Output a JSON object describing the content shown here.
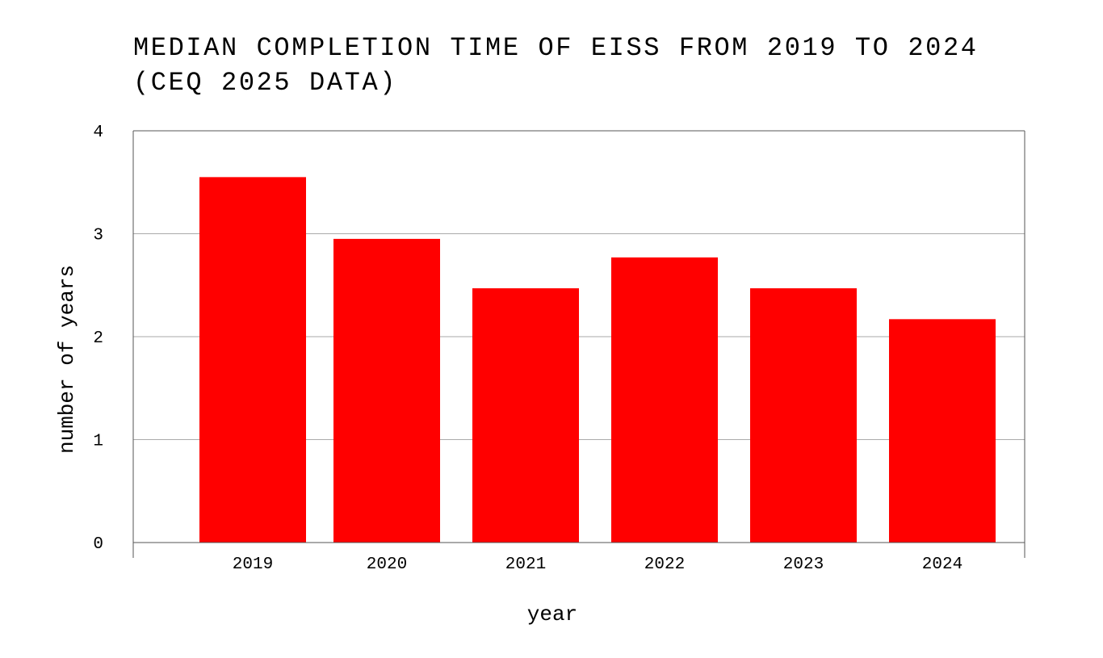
{
  "chart_data": {
    "type": "bar",
    "title": {
      "line1": "MEDIAN COMPLETION TIME OF EISS FROM 2019 TO 2024",
      "line2": "(CEQ 2025 DATA)"
    },
    "xlabel": "year",
    "ylabel": "number of years",
    "categories": [
      "2019",
      "2020",
      "2021",
      "2022",
      "2023",
      "2024"
    ],
    "values": [
      3.55,
      2.95,
      2.47,
      2.77,
      2.47,
      2.17
    ],
    "ylim": [
      0,
      4
    ],
    "yticks": [
      "0",
      "1",
      "2",
      "3",
      "4"
    ],
    "grid": true,
    "legend": "none",
    "bar_color": "#ff0000",
    "grid_color": "#aaaaaa",
    "axis_color": "#555555"
  }
}
